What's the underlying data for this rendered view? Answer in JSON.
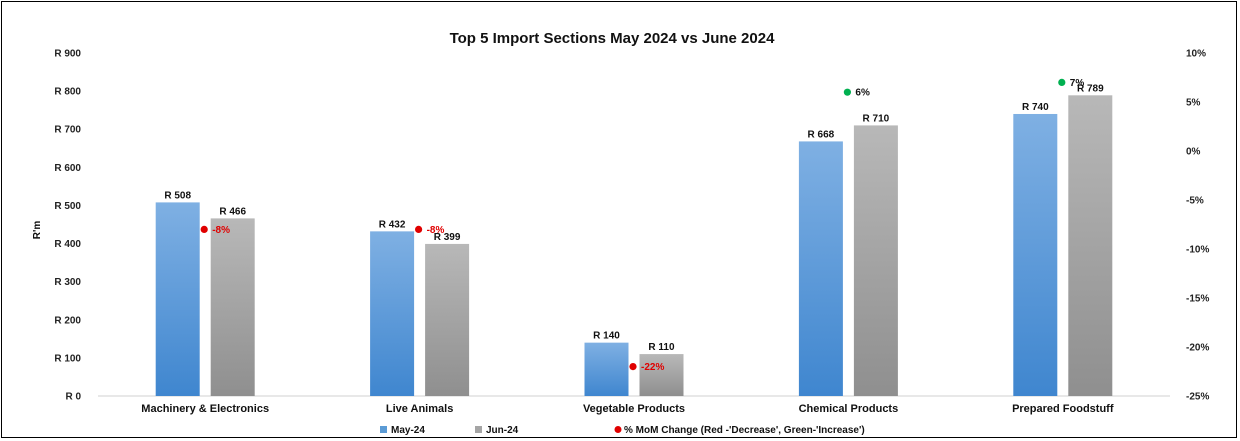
{
  "chart_data": {
    "type": "bar",
    "title": "Top 5 Import Sections May 2024 vs June 2024",
    "ylabel": "R'm",
    "categories": [
      "Machinery & Electronics",
      "Live Animals",
      "Vegetable Products",
      "Chemical Products",
      "Prepared Foodstuff"
    ],
    "series": [
      {
        "name": "May-24",
        "values": [
          508,
          432,
          140,
          668,
          740
        ],
        "labels": [
          "R 508",
          "R 432",
          "R 140",
          "R 668",
          "R 740"
        ],
        "color": "#5b9bd5"
      },
      {
        "name": "Jun-24",
        "values": [
          466,
          399,
          110,
          710,
          789
        ],
        "labels": [
          "R 466",
          "R 399",
          "R 110",
          "R 710",
          "R 789"
        ],
        "color": "#a5a5a5"
      }
    ],
    "mom_change": {
      "name": "% MoM Change (Red -'Decrease', Green-'Increase')",
      "values": [
        -8,
        -8,
        -22,
        6,
        7
      ],
      "labels": [
        "-8%",
        "-8%",
        "-22%",
        "6%",
        "7%"
      ],
      "decrease_color": "#e00000",
      "increase_color": "#00b050"
    },
    "ylim": [
      0,
      900
    ],
    "yticks": [
      0,
      100,
      200,
      300,
      400,
      500,
      600,
      700,
      800,
      900
    ],
    "ytick_labels": [
      "R 0",
      "R 100",
      "R 200",
      "R 300",
      "R 400",
      "R 500",
      "R 600",
      "R 700",
      "R 800",
      "R 900"
    ],
    "y2lim": [
      -25,
      10
    ],
    "y2ticks": [
      -25,
      -20,
      -15,
      -10,
      -5,
      0,
      5,
      10
    ],
    "y2tick_labels": [
      "-25%",
      "-20%",
      "-15%",
      "-10%",
      "-5%",
      "0%",
      "5%",
      "10%"
    ],
    "legend_position": "bottom",
    "grid": false
  }
}
